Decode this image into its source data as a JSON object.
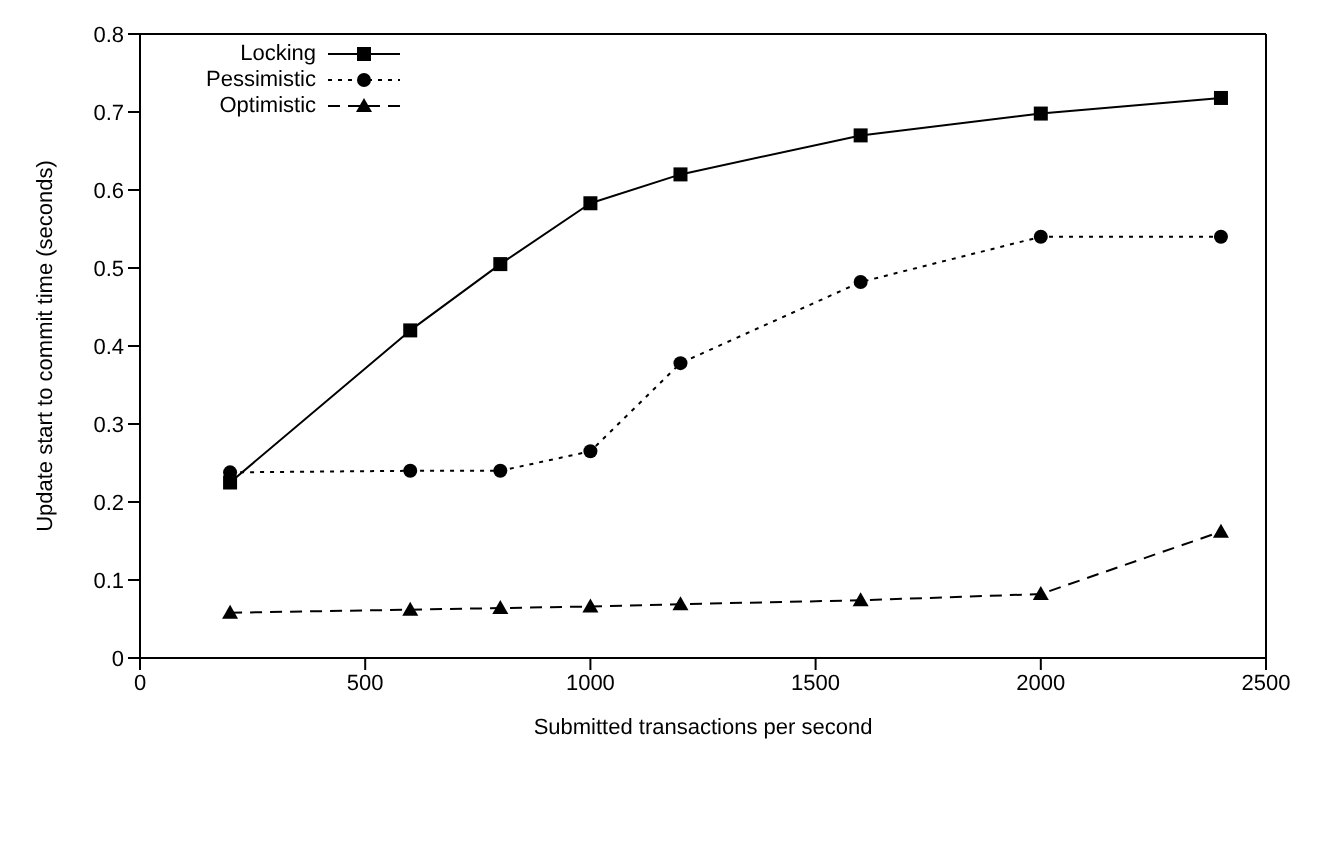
{
  "chart_data": {
    "type": "line",
    "xlabel": "Submitted transactions per second",
    "ylabel": "Update start to commit time (seconds)",
    "x": [
      200,
      600,
      800,
      1000,
      1200,
      1600,
      2000,
      2400
    ],
    "series": [
      {
        "name": "Locking",
        "color": "#000000",
        "marker": "square",
        "line_style": "solid",
        "values": [
          0.225,
          0.42,
          0.505,
          0.583,
          0.62,
          0.67,
          0.698,
          0.718
        ]
      },
      {
        "name": "Pessimistic",
        "color": "#000000",
        "marker": "circle",
        "line_style": "dotted",
        "values": [
          0.238,
          0.24,
          0.24,
          0.265,
          0.378,
          0.482,
          0.54,
          0.54
        ]
      },
      {
        "name": "Optimistic",
        "color": "#000000",
        "marker": "triangle",
        "line_style": "dashed",
        "values": [
          0.058,
          0.062,
          0.064,
          0.066,
          0.069,
          0.074,
          0.082,
          0.162
        ]
      }
    ],
    "xlim": [
      0,
      2500
    ],
    "xticks": [
      0,
      500,
      1000,
      1500,
      2000,
      2500
    ],
    "ylim": [
      0,
      0.8
    ],
    "yticks": [
      0,
      0.1,
      0.2,
      0.3,
      0.4,
      0.5,
      0.6,
      0.7,
      0.8
    ],
    "grid": false,
    "legend": "top left"
  }
}
